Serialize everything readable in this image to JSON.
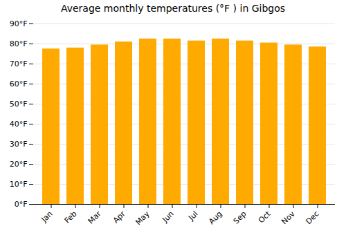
{
  "chart_data": {
    "type": "bar",
    "title": "Average monthly temperatures (°F ) in Gibgos",
    "categories": [
      "Jan",
      "Feb",
      "Mar",
      "Apr",
      "May",
      "Jun",
      "Jul",
      "Aug",
      "Sep",
      "Oct",
      "Nov",
      "Dec"
    ],
    "values": [
      77.5,
      78.0,
      79.5,
      81.0,
      82.5,
      82.5,
      81.5,
      82.5,
      81.5,
      80.5,
      79.5,
      78.5
    ],
    "color": "#FFAA00",
    "ylim": [
      0,
      90
    ],
    "yticks": [
      {
        "value": 0,
        "label": "0°F"
      },
      {
        "value": 10,
        "label": "10°F"
      },
      {
        "value": 20,
        "label": "20°F"
      },
      {
        "value": 30,
        "label": "30°F"
      },
      {
        "value": 40,
        "label": "40°F"
      },
      {
        "value": 50,
        "label": "50°F"
      },
      {
        "value": 60,
        "label": "60°F"
      },
      {
        "value": 70,
        "label": "70°F"
      },
      {
        "value": 80,
        "label": "80°F"
      },
      {
        "value": 90,
        "label": "90°F"
      }
    ],
    "grid": true
  }
}
